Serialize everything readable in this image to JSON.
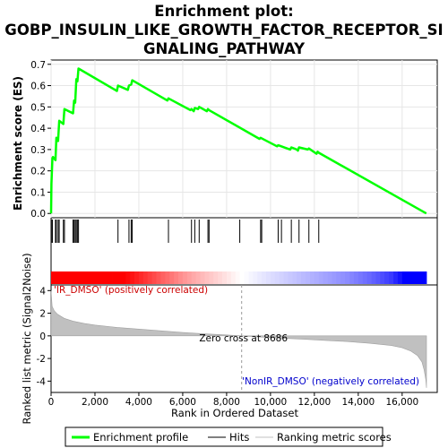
{
  "chart_data": {
    "type": "line",
    "title_lines": [
      "Enrichment plot:",
      "GOBP_INSULIN_LIKE_GROWTH_FACTOR_RECEPTOR_SI",
      "GNALING_PATHWAY"
    ],
    "es_plot": {
      "ylabel": "Enrichment score (ES)",
      "ylim": [
        -0.02,
        0.72
      ],
      "yticks": [
        0.0,
        0.1,
        0.2,
        0.3,
        0.4,
        0.5,
        0.6,
        0.7
      ],
      "ytick_labels": [
        "0.0",
        "0.1",
        "0.2",
        "0.3",
        "0.4",
        "0.5",
        "0.6",
        "0.7"
      ],
      "series": [
        {
          "name": "Enrichment profile",
          "color": "#00ff00",
          "x": [
            0,
            15,
            60,
            90,
            200,
            240,
            320,
            370,
            560,
            610,
            1000,
            1050,
            1100,
            1150,
            1200,
            1250,
            3000,
            3050,
            3500,
            3550,
            3650,
            3700,
            5300,
            5350,
            6350,
            6400,
            6500,
            6550,
            6700,
            6750,
            7100,
            7150,
            7200,
            9500,
            9550,
            10300,
            10350,
            10900,
            10950,
            11200,
            11250,
            11300,
            11700,
            11750,
            12100,
            12150,
            12200,
            17100
          ],
          "y": [
            0.0,
            0.14,
            0.26,
            0.265,
            0.25,
            0.355,
            0.34,
            0.435,
            0.42,
            0.49,
            0.47,
            0.53,
            0.52,
            0.63,
            0.62,
            0.68,
            0.575,
            0.6,
            0.58,
            0.6,
            0.605,
            0.625,
            0.53,
            0.54,
            0.485,
            0.49,
            0.48,
            0.495,
            0.49,
            0.5,
            0.48,
            0.49,
            0.485,
            0.35,
            0.355,
            0.315,
            0.32,
            0.3,
            0.31,
            0.3,
            0.295,
            0.31,
            0.3,
            0.305,
            0.28,
            0.29,
            0.285,
            0.0
          ]
        }
      ]
    },
    "hits": {
      "name": "Hits",
      "x": [
        15,
        60,
        200,
        240,
        320,
        370,
        560,
        610,
        1000,
        1050,
        1100,
        1150,
        1200,
        1250,
        3050,
        3550,
        3650,
        3700,
        5350,
        6400,
        6550,
        6750,
        7150,
        7200,
        8600,
        9550,
        9600,
        10350,
        10500,
        10950,
        11300,
        11750,
        12200
      ]
    },
    "ranking": {
      "name": "Ranking metric scores",
      "ylabel": "Ranked list metric (Signal2Noise)",
      "xlabel": "Rank in Ordered Dataset",
      "xlim": [
        0,
        17600
      ],
      "ylim": [
        -5,
        4.5
      ],
      "xticks": [
        0,
        2000,
        4000,
        6000,
        8000,
        10000,
        12000,
        14000,
        16000
      ],
      "xtick_labels": [
        "0",
        "2,000",
        "4,000",
        "6,000",
        "8,000",
        "10,000",
        "12,000",
        "14,000",
        "16,000"
      ],
      "yticks": [
        -4,
        -2,
        0,
        2,
        4
      ],
      "ytick_labels": [
        "-4",
        "-2",
        "0",
        "2",
        "4"
      ],
      "color": "#c0c0c0",
      "x": [
        0,
        50,
        150,
        300,
        600,
        1000,
        1500,
        2000,
        3000,
        4000,
        5000,
        6000,
        7000,
        8000,
        8686,
        9500,
        10500,
        11500,
        12500,
        13500,
        14500,
        15500,
        16000,
        16400,
        16700,
        16900,
        17000,
        17080,
        17110
      ],
      "y": [
        4.0,
        2.6,
        2.2,
        1.9,
        1.55,
        1.3,
        1.1,
        0.95,
        0.75,
        0.6,
        0.45,
        0.3,
        0.18,
        0.08,
        0.0,
        -0.1,
        -0.2,
        -0.3,
        -0.4,
        -0.5,
        -0.65,
        -0.85,
        -1.05,
        -1.35,
        -1.75,
        -2.3,
        -3.0,
        -3.9,
        -4.6
      ],
      "zero_cross": 8686,
      "zero_cross_label": "Zero cross at 8686",
      "pos_label": "'IR_DMSO' (positively correlated)",
      "neg_label": "'NonIR_DMSO' (negatively correlated)",
      "pos_color": "#ff0000",
      "neg_color": "#0000ff"
    },
    "legend": {
      "placement": "bottom",
      "items": [
        "Enrichment profile",
        "Hits",
        "Ranking metric scores"
      ]
    }
  }
}
